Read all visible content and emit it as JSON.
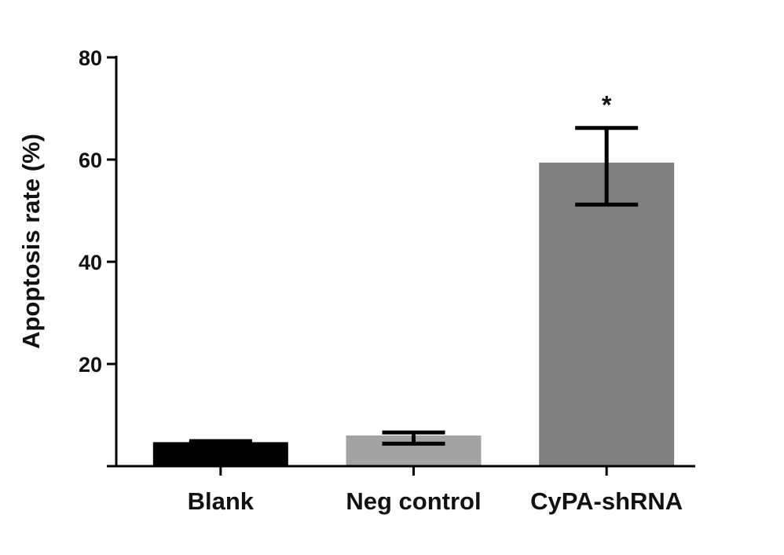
{
  "chart_data": {
    "type": "bar",
    "title": "",
    "xlabel": "",
    "ylabel": "Apoptosis rate (%)",
    "ylim": [
      0,
      80
    ],
    "yticks": [
      20,
      40,
      60,
      80
    ],
    "categories": [
      "Blank",
      "Neg control",
      "CyPA-shRNA"
    ],
    "values": [
      4.7,
      6.0,
      59.4
    ],
    "error_low": [
      4.5,
      4.4,
      51.2
    ],
    "error_high": [
      4.9,
      6.6,
      66.2
    ],
    "bar_colors": [
      "#000000",
      "#a3a3a3",
      "#7f7f7f"
    ],
    "annotations": [
      {
        "category": "CyPA-shRNA",
        "text": "*"
      }
    ],
    "grid": false,
    "legend": "none"
  }
}
